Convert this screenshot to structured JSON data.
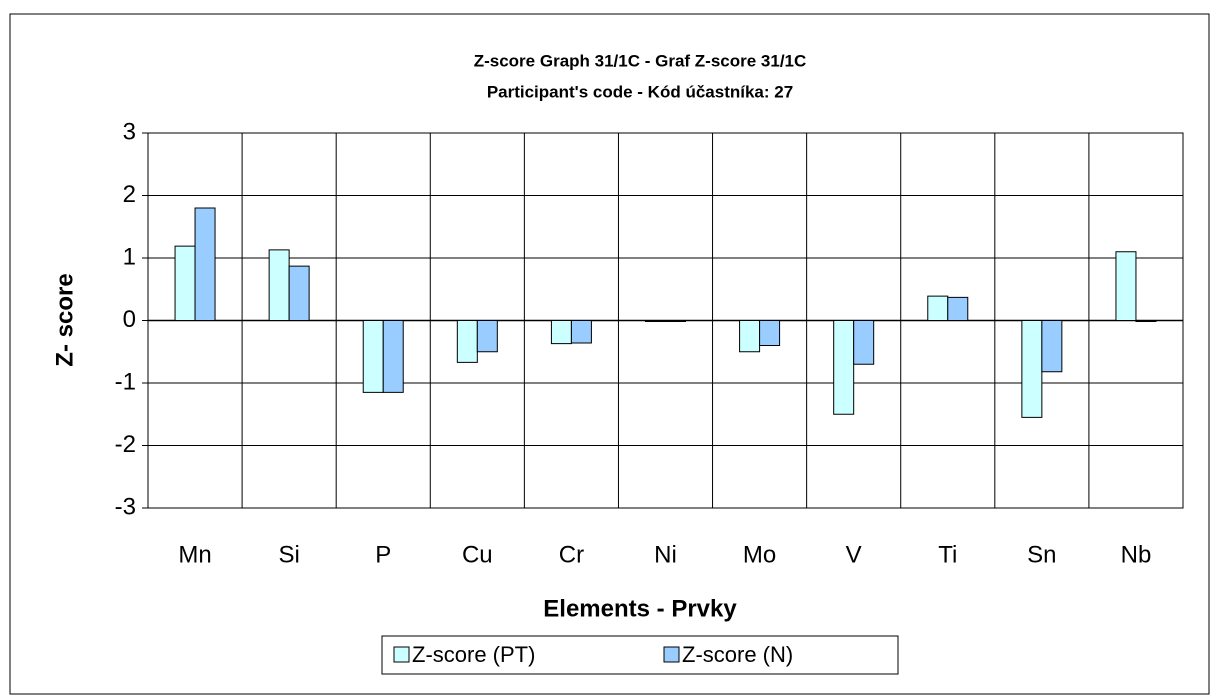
{
  "chart_data": {
    "type": "bar",
    "title": "Z-score Graph 31/1C - Graf Z-score 31/1C",
    "subtitle": "Participant's code - Kód účastníka:  27",
    "x_label": "Elements - Prvky",
    "y_label": "Z- score",
    "categories": [
      "Mn",
      "Si",
      "P",
      "Cu",
      "Cr",
      "Ni",
      "Mo",
      "V",
      "Ti",
      "Sn",
      "Nb"
    ],
    "series": [
      {
        "name": "Z-score (PT)",
        "color": "#ccffff",
        "values": [
          1.19,
          1.13,
          -1.15,
          -0.67,
          -0.37,
          0,
          -0.5,
          -1.5,
          0.39,
          -1.55,
          1.1
        ]
      },
      {
        "name": "Z-score (N)",
        "color": "#99ccff",
        "values": [
          1.8,
          0.87,
          -1.15,
          -0.5,
          -0.36,
          0,
          -0.4,
          -0.7,
          0.37,
          -0.82,
          0
        ]
      }
    ],
    "ylim": [
      -3,
      3
    ],
    "yticks": [
      -3,
      -2,
      -1,
      0,
      1,
      2,
      3
    ],
    "grid": true
  }
}
